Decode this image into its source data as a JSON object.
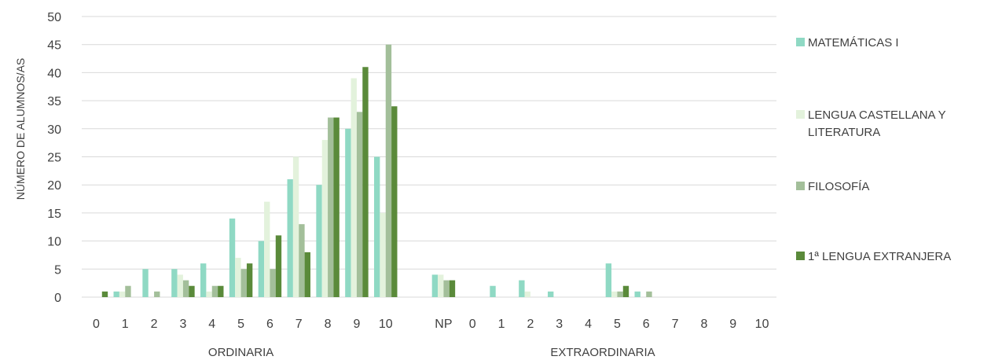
{
  "chart_data": {
    "type": "bar",
    "title": "",
    "ylabel": "NÚMERO DE ALUMNOS/AS",
    "ylim": [
      0,
      50
    ],
    "yticks": [
      0,
      5,
      10,
      15,
      20,
      25,
      30,
      35,
      40,
      45,
      50
    ],
    "grid": true,
    "legend_position": "right",
    "groups": [
      {
        "label": "ORDINARIA",
        "categories": [
          "0",
          "1",
          "2",
          "3",
          "4",
          "5",
          "6",
          "7",
          "8",
          "9",
          "10"
        ]
      },
      {
        "label": "EXTRAORDINARIA",
        "categories": [
          "NP",
          "0",
          "1",
          "2",
          "3",
          "4",
          "5",
          "6",
          "7",
          "8",
          "9",
          "10"
        ]
      }
    ],
    "series": [
      {
        "name": "MATEMÁTICAS I",
        "color": "#8fd9c4",
        "values": [
          0,
          1,
          5,
          5,
          6,
          14,
          10,
          21,
          20,
          30,
          25,
          4,
          0,
          2,
          3,
          1,
          0,
          6,
          1,
          0,
          0,
          0,
          0
        ]
      },
      {
        "name": "LENGUA CASTELLANA Y LITERATURA",
        "color": "#e3f2dc",
        "values": [
          0,
          1,
          0,
          4,
          1,
          7,
          17,
          25,
          28,
          39,
          15,
          4,
          0,
          0,
          1,
          0,
          0,
          1,
          0,
          0,
          0,
          0,
          0
        ]
      },
      {
        "name": "FILOSOFÍA",
        "color": "#a3bf9a",
        "values": [
          0,
          2,
          1,
          3,
          2,
          5,
          5,
          13,
          32,
          33,
          45,
          3,
          0,
          0,
          0,
          0,
          0,
          1,
          1,
          0,
          0,
          0,
          0
        ]
      },
      {
        "name": "1ª LENGUA EXTRANJERA",
        "color": "#5a8a3a",
        "values": [
          1,
          0,
          0,
          2,
          2,
          6,
          11,
          8,
          32,
          41,
          34,
          3,
          0,
          0,
          0,
          0,
          0,
          2,
          0,
          0,
          0,
          0,
          0
        ]
      }
    ]
  }
}
